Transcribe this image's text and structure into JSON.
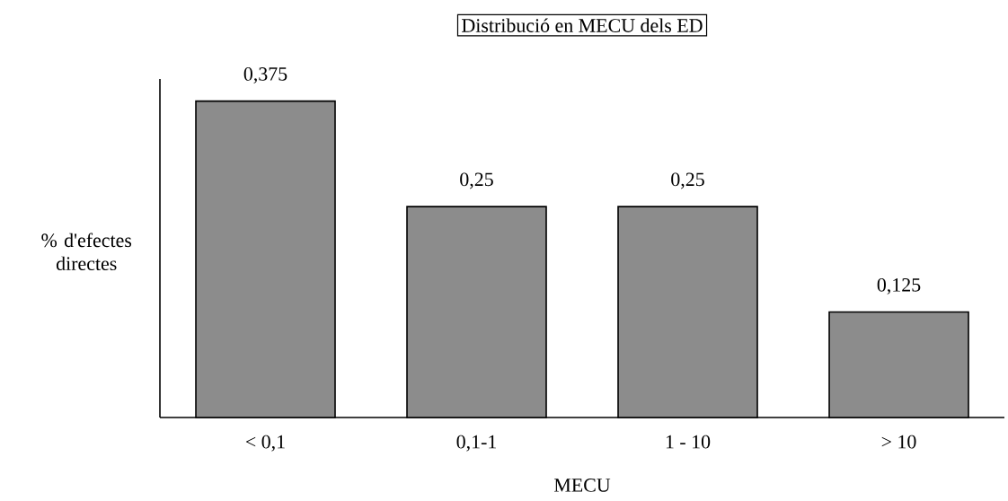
{
  "chart_data": {
    "type": "bar",
    "title": "Distribució en MECU dels ED",
    "xlabel": "MECU",
    "ylabel": "% d'efectes directes",
    "categories": [
      "< 0,1",
      "0,1-1",
      "1 - 10",
      "> 10"
    ],
    "values": [
      0.375,
      0.25,
      0.25,
      0.125
    ],
    "value_labels": [
      "0,375",
      "0,25",
      "0,25",
      "0,125"
    ],
    "color": "#8c8c8c",
    "grid": false
  }
}
